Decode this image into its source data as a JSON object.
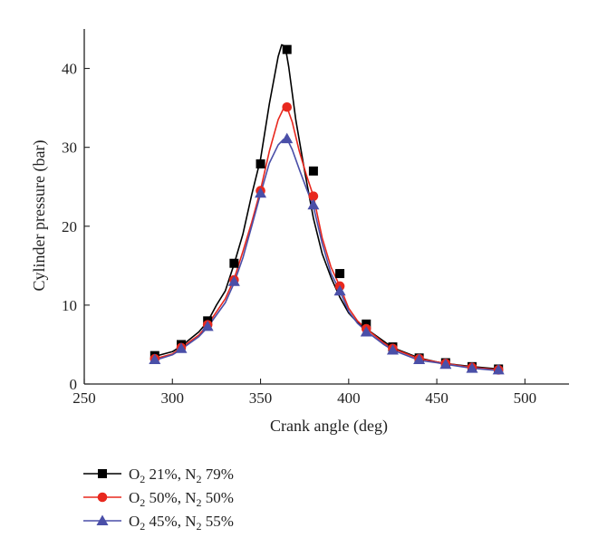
{
  "chart_data": {
    "type": "line",
    "title": "",
    "xlabel": "Crank angle (deg)",
    "ylabel": "Cylinder pressure (bar)",
    "xlim": [
      250,
      525
    ],
    "ylim": [
      0,
      45
    ],
    "x_ticks": [
      250,
      300,
      350,
      400,
      450,
      500
    ],
    "y_ticks": [
      0,
      10,
      20,
      30,
      40
    ],
    "grid": false,
    "legend_position": "bottom-left, below plot",
    "series": [
      {
        "name": "O2 21%, N2 79%",
        "legend": {
          "main": "O",
          "sub1": "2",
          "mid": " 21%, N",
          "sub2": "2",
          "tail": " 79%"
        },
        "color": "#000000",
        "marker": "square",
        "curve": {
          "x": [
            290,
            300,
            305,
            315,
            320,
            325,
            330,
            335,
            340,
            345,
            350,
            355,
            360,
            362,
            364,
            366,
            370,
            375,
            380,
            385,
            390,
            395,
            400,
            405,
            410,
            420,
            425,
            440,
            450,
            455,
            470,
            480,
            485
          ],
          "y": [
            3.5,
            4.1,
            4.8,
            6.6,
            7.9,
            10.0,
            11.8,
            15.2,
            19.0,
            24.0,
            28.5,
            35.5,
            41.5,
            43.0,
            42.8,
            40.2,
            33.5,
            27.0,
            21.0,
            16.5,
            13.5,
            11.0,
            9.0,
            7.8,
            7.0,
            5.4,
            4.6,
            3.3,
            2.8,
            2.6,
            2.2,
            2.0,
            1.9
          ]
        },
        "markers": {
          "x": [
            290,
            305,
            320,
            335,
            350,
            365,
            380,
            395,
            410,
            425,
            440,
            455,
            470,
            485
          ],
          "y": [
            3.6,
            5.0,
            8.0,
            15.3,
            27.9,
            42.4,
            27.0,
            14.0,
            7.6,
            4.7,
            3.3,
            2.7,
            2.2,
            1.9
          ]
        }
      },
      {
        "name": "O2 50%, N2 50%",
        "legend": {
          "main": "O",
          "sub1": "2",
          "mid": " 50%, N",
          "sub2": "2",
          "tail": " 50%"
        },
        "color": "#e8281e",
        "marker": "circle",
        "curve": {
          "x": [
            290,
            300,
            305,
            315,
            320,
            330,
            335,
            340,
            345,
            350,
            355,
            360,
            363,
            365,
            368,
            372,
            376,
            380,
            385,
            390,
            395,
            400,
            405,
            410,
            420,
            425,
            440,
            450,
            455,
            470,
            485
          ],
          "y": [
            3.2,
            3.8,
            4.6,
            6.2,
            7.5,
            10.8,
            13.3,
            16.8,
            20.5,
            24.6,
            29.5,
            33.5,
            34.9,
            35.1,
            33.2,
            29.5,
            26.5,
            23.8,
            18.5,
            14.8,
            12.4,
            9.6,
            8.0,
            7.0,
            5.2,
            4.5,
            3.2,
            2.8,
            2.6,
            2.1,
            1.8
          ]
        },
        "markers": {
          "x": [
            290,
            305,
            320,
            335,
            350,
            365,
            380,
            395,
            410,
            425,
            440,
            455,
            470,
            485
          ],
          "y": [
            3.2,
            4.6,
            7.5,
            13.2,
            24.5,
            35.1,
            23.8,
            12.4,
            7.0,
            4.5,
            3.2,
            2.6,
            2.1,
            1.8
          ]
        }
      },
      {
        "name": "O2 45%, N2 55%",
        "legend": {
          "main": "O",
          "sub1": "2",
          "mid": " 45%, N",
          "sub2": "2",
          "tail": " 55%"
        },
        "color": "#4a4fa8",
        "marker": "triangle",
        "curve": {
          "x": [
            290,
            300,
            305,
            315,
            320,
            330,
            335,
            340,
            345,
            350,
            355,
            360,
            363,
            365,
            368,
            372,
            376,
            380,
            385,
            390,
            395,
            400,
            405,
            410,
            420,
            425,
            440,
            450,
            455,
            470,
            485
          ],
          "y": [
            3.0,
            3.7,
            4.4,
            6.0,
            7.2,
            10.3,
            12.8,
            16.0,
            20.0,
            24.1,
            28.0,
            30.3,
            31.0,
            31.1,
            29.7,
            27.2,
            24.8,
            22.5,
            17.8,
            14.0,
            11.8,
            9.2,
            7.7,
            6.7,
            5.0,
            4.3,
            3.0,
            2.7,
            2.5,
            2.0,
            1.7
          ]
        },
        "markers": {
          "x": [
            290,
            305,
            320,
            335,
            350,
            365,
            380,
            395,
            410,
            425,
            440,
            455,
            470,
            485
          ],
          "y": [
            3.1,
            4.5,
            7.3,
            13.0,
            24.2,
            31.1,
            22.7,
            11.8,
            6.6,
            4.3,
            3.1,
            2.5,
            2.0,
            1.8
          ]
        }
      }
    ]
  }
}
